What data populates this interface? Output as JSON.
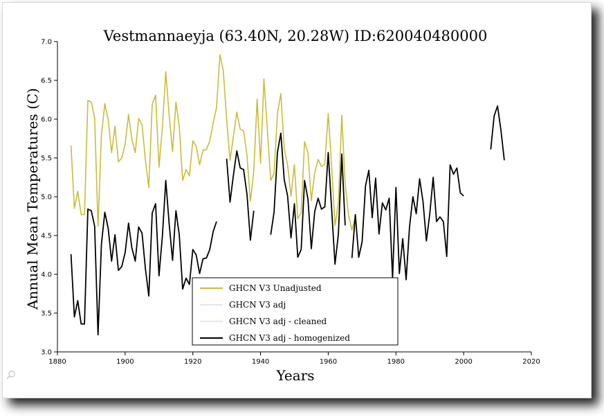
{
  "chart_data": {
    "type": "line",
    "title": "Vestmannaeyja (63.40N, 20.28W) ID:620040480000",
    "xlabel": "Years",
    "ylabel": "Annual Mean Temperatures (C)",
    "xlim": [
      1880,
      2020
    ],
    "ylim": [
      3.0,
      7.0
    ],
    "xticks": [
      1880,
      1900,
      1920,
      1940,
      1960,
      1980,
      2000,
      2020
    ],
    "yticks": [
      3.0,
      3.5,
      4.0,
      4.5,
      5.0,
      5.5,
      6.0,
      6.5,
      7.0
    ],
    "ytick_labels": [
      "3.0",
      "3.5",
      "4.0",
      "4.5",
      "5.0",
      "5.5",
      "6.0",
      "6.5",
      "7.0"
    ],
    "grid": false,
    "legend_position": "bottom-center",
    "series": [
      {
        "name": "GHCN V3 Unadjusted",
        "color": "#c8bc3a",
        "segments": [
          [
            [
              1884,
              5.66
            ],
            [
              1885,
              4.85
            ],
            [
              1886,
              5.07
            ],
            [
              1887,
              4.77
            ],
            [
              1888,
              4.77
            ],
            [
              1889,
              6.24
            ],
            [
              1890,
              6.22
            ],
            [
              1891,
              6.02
            ],
            [
              1892,
              4.62
            ],
            [
              1893,
              5.79
            ],
            [
              1894,
              6.2
            ],
            [
              1895,
              5.99
            ],
            [
              1896,
              5.57
            ],
            [
              1897,
              5.91
            ],
            [
              1898,
              5.45
            ],
            [
              1899,
              5.5
            ],
            [
              1900,
              5.68
            ],
            [
              1901,
              6.06
            ],
            [
              1902,
              5.74
            ],
            [
              1903,
              5.57
            ],
            [
              1904,
              6.01
            ],
            [
              1905,
              5.93
            ],
            [
              1906,
              5.47
            ],
            [
              1907,
              5.12
            ],
            [
              1908,
              6.19
            ],
            [
              1909,
              6.31
            ],
            [
              1910,
              5.38
            ],
            [
              1911,
              5.89
            ],
            [
              1912,
              6.61
            ],
            [
              1913,
              6.05
            ],
            [
              1914,
              5.58
            ],
            [
              1915,
              6.22
            ],
            [
              1916,
              5.91
            ],
            [
              1917,
              5.21
            ],
            [
              1918,
              5.35
            ],
            [
              1919,
              5.27
            ],
            [
              1920,
              5.72
            ],
            [
              1921,
              5.65
            ],
            [
              1922,
              5.41
            ],
            [
              1923,
              5.6
            ],
            [
              1924,
              5.61
            ],
            [
              1925,
              5.72
            ],
            [
              1926,
              5.95
            ],
            [
              1927,
              6.15
            ],
            [
              1928,
              6.83
            ],
            [
              1929,
              6.62
            ],
            [
              1930,
              5.99
            ],
            [
              1931,
              5.47
            ],
            [
              1932,
              5.78
            ],
            [
              1933,
              6.09
            ],
            [
              1934,
              5.87
            ],
            [
              1935,
              5.85
            ],
            [
              1936,
              5.53
            ],
            [
              1937,
              4.94
            ],
            [
              1938,
              5.33
            ],
            [
              1939,
              6.26
            ],
            [
              1940,
              5.43
            ],
            [
              1941,
              6.52
            ],
            [
              1942,
              5.87
            ],
            [
              1943,
              5.21
            ],
            [
              1944,
              5.3
            ],
            [
              1945,
              6.07
            ],
            [
              1946,
              6.33
            ],
            [
              1947,
              5.62
            ],
            [
              1948,
              5.41
            ],
            [
              1949,
              5.01
            ],
            [
              1950,
              5.41
            ],
            [
              1951,
              4.72
            ],
            [
              1952,
              4.79
            ],
            [
              1953,
              5.71
            ],
            [
              1954,
              5.57
            ],
            [
              1955,
              4.95
            ],
            [
              1956,
              5.31
            ],
            [
              1957,
              5.48
            ],
            [
              1958,
              5.39
            ],
            [
              1959,
              5.42
            ],
            [
              1960,
              6.07
            ],
            [
              1961,
              5.4
            ],
            [
              1962,
              4.63
            ],
            [
              1963,
              4.92
            ],
            [
              1964,
              6.05
            ],
            [
              1965,
              5.17
            ],
            [
              1966,
              4.76
            ],
            [
              1967,
              4.57
            ],
            [
              1968,
              4.75
            ]
          ]
        ]
      },
      {
        "name": "GHCN V3 adj",
        "color": "#e2e2f4",
        "segments": []
      },
      {
        "name": "GHCN V3 adj - cleaned",
        "color": "#f4e2e2",
        "segments": []
      },
      {
        "name": "GHCN V3 adj - homogenized",
        "color": "#000000",
        "segments": [
          [
            [
              1884,
              4.26
            ],
            [
              1885,
              3.45
            ],
            [
              1886,
              3.66
            ],
            [
              1887,
              3.36
            ],
            [
              1888,
              3.36
            ],
            [
              1889,
              4.84
            ],
            [
              1890,
              4.82
            ],
            [
              1891,
              4.62
            ],
            [
              1892,
              3.22
            ],
            [
              1893,
              4.39
            ],
            [
              1894,
              4.8
            ],
            [
              1895,
              4.59
            ],
            [
              1896,
              4.17
            ],
            [
              1897,
              4.51
            ],
            [
              1898,
              4.05
            ],
            [
              1899,
              4.1
            ],
            [
              1900,
              4.28
            ],
            [
              1901,
              4.66
            ],
            [
              1902,
              4.34
            ],
            [
              1903,
              4.17
            ],
            [
              1904,
              4.61
            ],
            [
              1905,
              4.53
            ],
            [
              1906,
              4.07
            ],
            [
              1907,
              3.72
            ],
            [
              1908,
              4.79
            ],
            [
              1909,
              4.91
            ],
            [
              1910,
              3.98
            ],
            [
              1911,
              4.49
            ],
            [
              1912,
              5.21
            ],
            [
              1913,
              4.65
            ],
            [
              1914,
              4.18
            ],
            [
              1915,
              4.82
            ],
            [
              1916,
              4.51
            ],
            [
              1917,
              3.81
            ],
            [
              1918,
              3.95
            ],
            [
              1919,
              3.87
            ],
            [
              1920,
              4.32
            ],
            [
              1921,
              4.25
            ],
            [
              1922,
              4.01
            ],
            [
              1923,
              4.2
            ],
            [
              1924,
              4.21
            ],
            [
              1925,
              4.32
            ],
            [
              1926,
              4.55
            ],
            [
              1927,
              4.68
            ]
          ],
          [
            [
              1930,
              5.49
            ],
            [
              1931,
              4.93
            ],
            [
              1932,
              5.28
            ],
            [
              1933,
              5.59
            ],
            [
              1934,
              5.37
            ],
            [
              1935,
              5.35
            ],
            [
              1936,
              5.03
            ],
            [
              1937,
              4.44
            ],
            [
              1938,
              4.82
            ]
          ],
          [
            [
              1943,
              4.51
            ],
            [
              1944,
              4.8
            ],
            [
              1945,
              5.57
            ],
            [
              1946,
              5.82
            ],
            [
              1947,
              5.22
            ],
            [
              1948,
              5.01
            ],
            [
              1949,
              4.47
            ],
            [
              1950,
              4.91
            ],
            [
              1951,
              4.22
            ],
            [
              1952,
              4.32
            ],
            [
              1953,
              5.21
            ],
            [
              1954,
              4.97
            ],
            [
              1955,
              4.33
            ],
            [
              1956,
              4.81
            ],
            [
              1957,
              4.98
            ],
            [
              1958,
              4.84
            ],
            [
              1959,
              4.87
            ],
            [
              1960,
              5.57
            ],
            [
              1961,
              4.85
            ],
            [
              1962,
              4.13
            ],
            [
              1963,
              4.52
            ],
            [
              1964,
              5.55
            ],
            [
              1965,
              4.63
            ]
          ],
          [
            [
              1967,
              4.21
            ],
            [
              1968,
              4.77
            ],
            [
              1969,
              4.22
            ],
            [
              1970,
              4.42
            ],
            [
              1971,
              5.14
            ],
            [
              1972,
              5.34
            ],
            [
              1973,
              4.73
            ],
            [
              1974,
              5.24
            ],
            [
              1975,
              4.52
            ],
            [
              1976,
              4.92
            ],
            [
              1977,
              4.83
            ],
            [
              1978,
              4.98
            ],
            [
              1979,
              3.95
            ],
            [
              1980,
              5.12
            ],
            [
              1981,
              4.01
            ],
            [
              1982,
              4.46
            ],
            [
              1983,
              3.93
            ],
            [
              1984,
              4.61
            ],
            [
              1985,
              5.0
            ],
            [
              1986,
              4.78
            ],
            [
              1987,
              5.23
            ],
            [
              1988,
              4.94
            ],
            [
              1989,
              4.43
            ],
            [
              1990,
              4.78
            ],
            [
              1991,
              5.25
            ],
            [
              1992,
              4.68
            ],
            [
              1993,
              4.74
            ],
            [
              1994,
              4.68
            ],
            [
              1995,
              4.23
            ],
            [
              1996,
              5.41
            ],
            [
              1997,
              5.29
            ],
            [
              1998,
              5.37
            ],
            [
              1999,
              5.05
            ],
            [
              2000,
              5.01
            ]
          ],
          [
            [
              2008,
              5.61
            ],
            [
              2009,
              6.04
            ],
            [
              2010,
              6.17
            ],
            [
              2011,
              5.86
            ],
            [
              2012,
              5.47
            ]
          ]
        ]
      }
    ]
  },
  "icons": {
    "zoom": "magnifier-icon"
  }
}
